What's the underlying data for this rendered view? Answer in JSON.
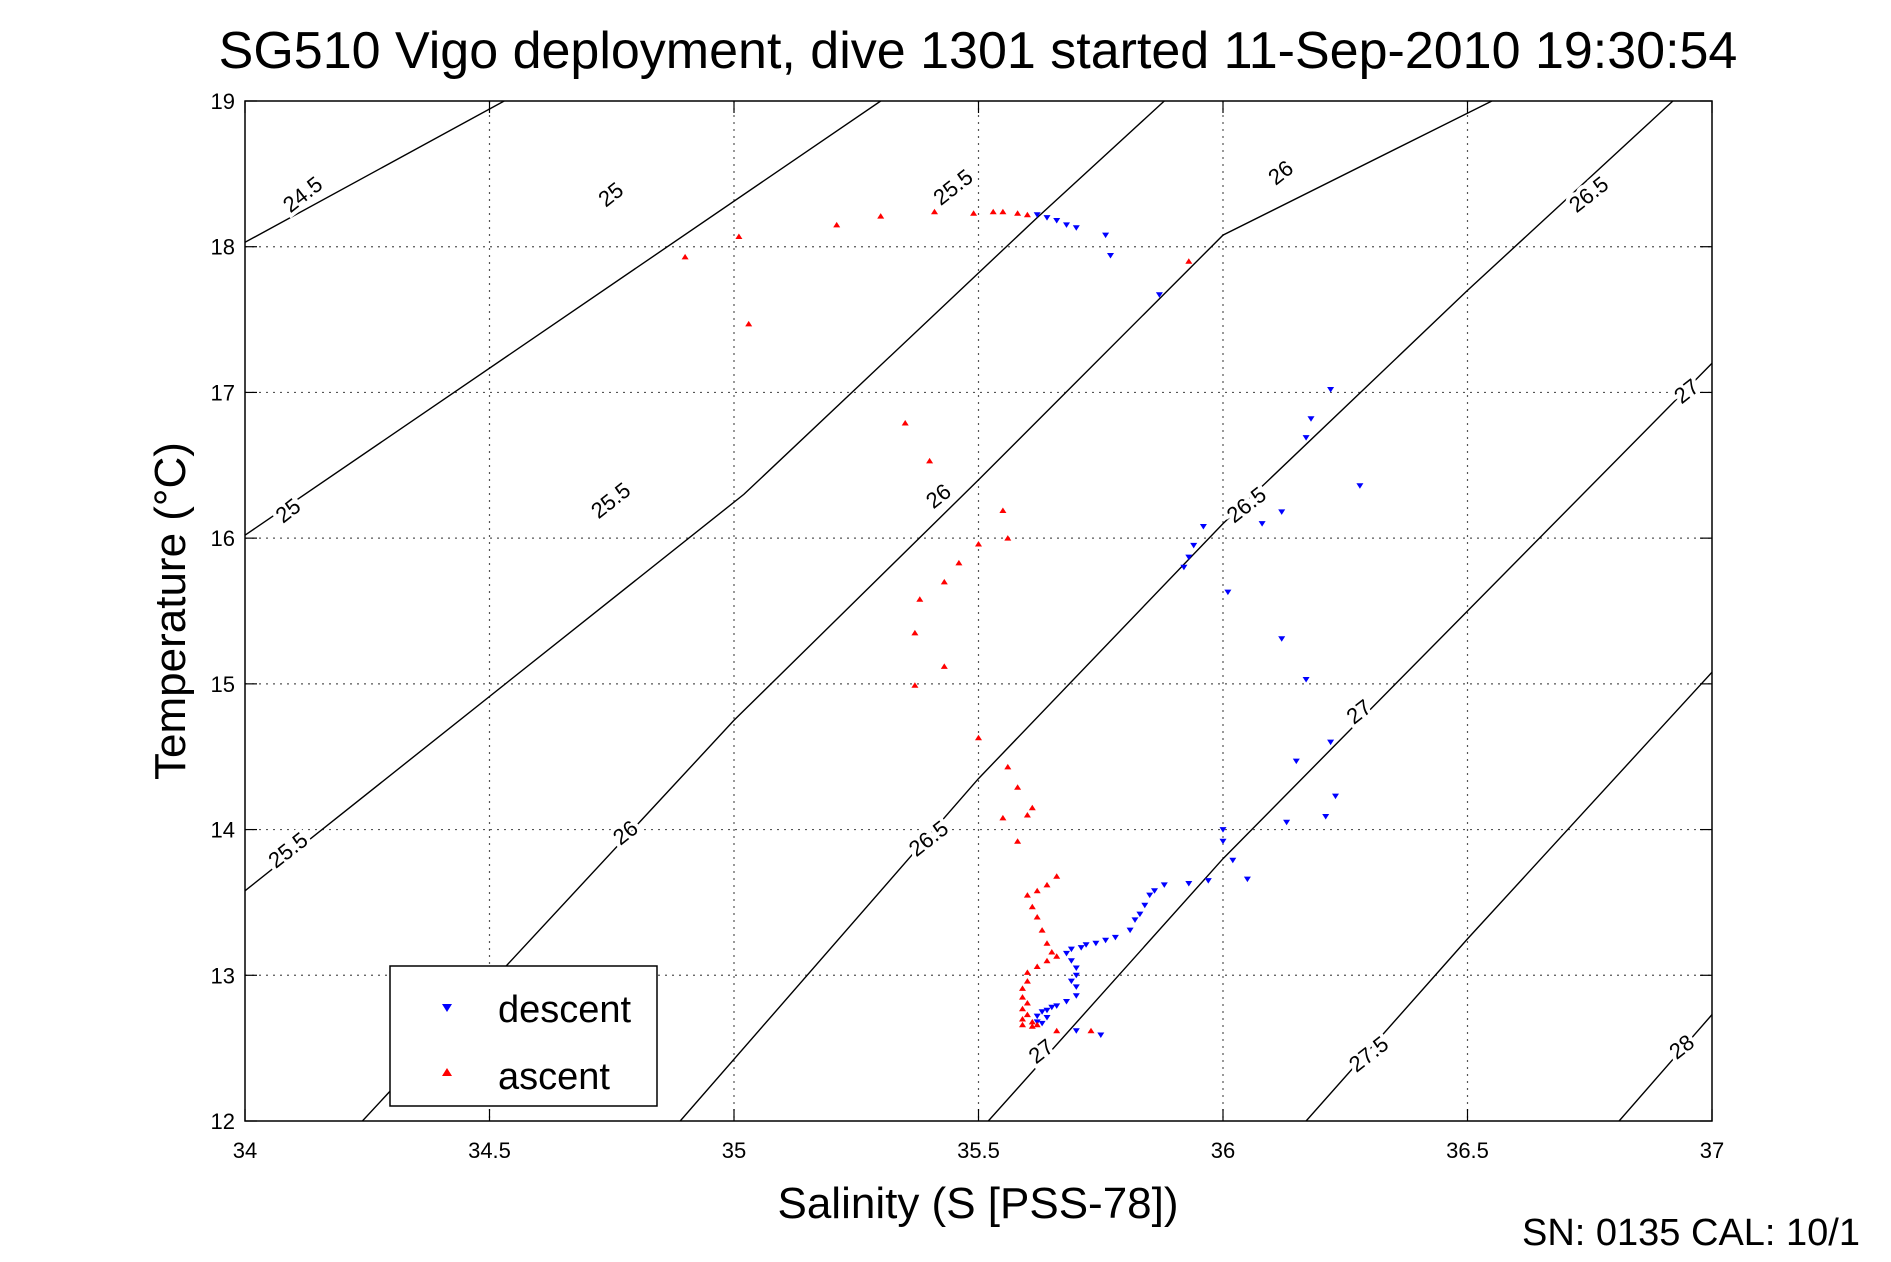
{
  "chart_data": {
    "type": "scatter",
    "title": "SG510 Vigo deployment, dive 1301 started 11-Sep-2010 19:30:54",
    "xlabel": "Salinity (S [PSS-78])",
    "ylabel": "Temperature (°C)",
    "xlim": [
      34,
      37
    ],
    "ylim": [
      12,
      19
    ],
    "x_ticks": [
      34,
      34.5,
      35,
      35.5,
      36,
      36.5,
      37
    ],
    "y_ticks": [
      12,
      13,
      14,
      15,
      16,
      17,
      18,
      19
    ],
    "x_tick_labels": [
      "34",
      "34.5",
      "35",
      "35.5",
      "36",
      "36.5",
      "37"
    ],
    "y_tick_labels": [
      "12",
      "13",
      "14",
      "15",
      "16",
      "17",
      "18",
      "19"
    ],
    "grid": true,
    "legend_position": "bottom-left",
    "density_contours": [
      {
        "label": "24.5",
        "points": [
          [
            34.0,
            18.03
          ],
          [
            34.53,
            19.0
          ]
        ],
        "label_pos": [
          34.12,
          18.35
        ]
      },
      {
        "label": "25",
        "points": [
          [
            34.0,
            16.02
          ],
          [
            35.3,
            19.0
          ]
        ],
        "label_pos": [
          34.09,
          16.18
        ]
      },
      {
        "label": "25",
        "points": [
          [
            34.0,
            16.02
          ],
          [
            35.3,
            19.0
          ]
        ],
        "label_pos": [
          34.75,
          18.35
        ]
      },
      {
        "label": "25.5",
        "points": [
          [
            34.0,
            13.58
          ],
          [
            35.02,
            16.3
          ],
          [
            35.62,
            18.2
          ],
          [
            35.88,
            19.0
          ]
        ],
        "label_pos": [
          34.09,
          13.85
        ]
      },
      {
        "label": "25.5",
        "points": [
          [
            34.0,
            13.58
          ],
          [
            35.02,
            16.3
          ],
          [
            35.62,
            18.2
          ],
          [
            35.88,
            19.0
          ]
        ],
        "label_pos": [
          34.75,
          16.25
        ]
      },
      {
        "label": "25.5",
        "points": [
          [
            34.0,
            13.58
          ],
          [
            35.02,
            16.3
          ],
          [
            35.62,
            18.2
          ],
          [
            35.88,
            19.0
          ]
        ],
        "label_pos": [
          35.45,
          18.4
        ]
      },
      {
        "label": "26",
        "points": [
          [
            34.24,
            12.0
          ],
          [
            35.0,
            14.75
          ],
          [
            35.5,
            16.4
          ],
          [
            36.0,
            18.08
          ],
          [
            36.55,
            19.0
          ]
        ],
        "label_pos": [
          34.78,
          13.97
        ]
      },
      {
        "label": "26",
        "points": [
          [
            34.24,
            12.0
          ],
          [
            35.0,
            14.75
          ],
          [
            35.5,
            16.4
          ],
          [
            36.0,
            18.08
          ],
          [
            36.55,
            19.0
          ]
        ],
        "label_pos": [
          35.42,
          16.28
        ]
      },
      {
        "label": "26",
        "points": [
          [
            34.24,
            12.0
          ],
          [
            35.0,
            14.75
          ],
          [
            35.5,
            16.4
          ],
          [
            36.0,
            18.08
          ],
          [
            36.55,
            19.0
          ]
        ],
        "label_pos": [
          36.12,
          18.5
        ]
      },
      {
        "label": "26.5",
        "points": [
          [
            34.89,
            12.0
          ],
          [
            35.5,
            14.35
          ],
          [
            36.0,
            16.1
          ],
          [
            36.5,
            17.7
          ],
          [
            36.92,
            19.0
          ]
        ],
        "label_pos": [
          35.4,
          13.93
        ]
      },
      {
        "label": "26.5",
        "points": [
          [
            34.89,
            12.0
          ],
          [
            35.5,
            14.35
          ],
          [
            36.0,
            16.1
          ],
          [
            36.5,
            17.7
          ],
          [
            36.92,
            19.0
          ]
        ],
        "label_pos": [
          36.05,
          16.22
        ]
      },
      {
        "label": "26.5",
        "points": [
          [
            34.89,
            12.0
          ],
          [
            35.5,
            14.35
          ],
          [
            36.0,
            16.1
          ],
          [
            36.5,
            17.7
          ],
          [
            36.92,
            19.0
          ]
        ],
        "label_pos": [
          36.75,
          18.35
        ]
      },
      {
        "label": "27",
        "points": [
          [
            35.52,
            12.0
          ],
          [
            36.0,
            13.8
          ],
          [
            36.5,
            15.5
          ],
          [
            37.0,
            17.2
          ]
        ],
        "label_pos": [
          35.63,
          12.47
        ]
      },
      {
        "label": "27",
        "points": [
          [
            35.52,
            12.0
          ],
          [
            36.0,
            13.8
          ],
          [
            36.5,
            15.5
          ],
          [
            37.0,
            17.2
          ]
        ],
        "label_pos": [
          36.28,
          14.8
        ]
      },
      {
        "label": "27",
        "points": [
          [
            35.52,
            12.0
          ],
          [
            36.0,
            13.8
          ],
          [
            36.5,
            15.5
          ],
          [
            37.0,
            17.2
          ]
        ],
        "label_pos": [
          36.95,
          17.0
        ]
      },
      {
        "label": "27.5",
        "points": [
          [
            36.17,
            12.0
          ],
          [
            36.5,
            13.25
          ],
          [
            37.0,
            15.08
          ]
        ],
        "label_pos": [
          36.3,
          12.45
        ]
      },
      {
        "label": "28",
        "points": [
          [
            36.81,
            12.0
          ],
          [
            37.0,
            12.73
          ]
        ],
        "label_pos": [
          36.94,
          12.5
        ]
      }
    ],
    "series": [
      {
        "name": "descent",
        "color": "#0000ff",
        "marker": "triangle-down",
        "points": [
          [
            35.62,
            18.22
          ],
          [
            35.64,
            18.2
          ],
          [
            35.66,
            18.18
          ],
          [
            35.68,
            18.15
          ],
          [
            35.7,
            18.13
          ],
          [
            35.76,
            18.08
          ],
          [
            35.77,
            17.94
          ],
          [
            35.87,
            17.67
          ],
          [
            36.22,
            17.02
          ],
          [
            36.18,
            16.82
          ],
          [
            36.17,
            16.69
          ],
          [
            36.28,
            16.36
          ],
          [
            36.12,
            16.18
          ],
          [
            35.96,
            16.08
          ],
          [
            36.08,
            16.1
          ],
          [
            35.94,
            15.95
          ],
          [
            35.93,
            15.87
          ],
          [
            35.92,
            15.8
          ],
          [
            36.01,
            15.63
          ],
          [
            36.12,
            15.31
          ],
          [
            36.17,
            15.03
          ],
          [
            36.22,
            14.6
          ],
          [
            36.15,
            14.47
          ],
          [
            36.23,
            14.23
          ],
          [
            36.13,
            14.05
          ],
          [
            36.21,
            14.09
          ],
          [
            36.0,
            14.0
          ],
          [
            36.0,
            13.92
          ],
          [
            36.02,
            13.79
          ],
          [
            36.05,
            13.66
          ],
          [
            35.97,
            13.65
          ],
          [
            35.93,
            13.63
          ],
          [
            35.88,
            13.62
          ],
          [
            35.86,
            13.58
          ],
          [
            35.85,
            13.55
          ],
          [
            35.84,
            13.48
          ],
          [
            35.83,
            13.42
          ],
          [
            35.82,
            13.38
          ],
          [
            35.81,
            13.31
          ],
          [
            35.78,
            13.26
          ],
          [
            35.76,
            13.24
          ],
          [
            35.74,
            13.22
          ],
          [
            35.72,
            13.21
          ],
          [
            35.71,
            13.19
          ],
          [
            35.69,
            13.18
          ],
          [
            35.68,
            13.15
          ],
          [
            35.69,
            13.1
          ],
          [
            35.7,
            13.05
          ],
          [
            35.7,
            13.0
          ],
          [
            35.69,
            12.96
          ],
          [
            35.7,
            12.92
          ],
          [
            35.7,
            12.86
          ],
          [
            35.68,
            12.82
          ],
          [
            35.66,
            12.79
          ],
          [
            35.65,
            12.78
          ],
          [
            35.64,
            12.76
          ],
          [
            35.63,
            12.75
          ],
          [
            35.62,
            12.72
          ],
          [
            35.64,
            12.71
          ],
          [
            35.62,
            12.68
          ],
          [
            35.63,
            12.67
          ],
          [
            35.7,
            12.62
          ],
          [
            35.75,
            12.59
          ]
        ]
      },
      {
        "name": "ascent",
        "color": "#ff0000",
        "marker": "triangle-up",
        "points": [
          [
            34.9,
            17.93
          ],
          [
            35.01,
            18.07
          ],
          [
            35.03,
            17.47
          ],
          [
            35.21,
            18.15
          ],
          [
            35.3,
            18.21
          ],
          [
            35.41,
            18.24
          ],
          [
            35.49,
            18.23
          ],
          [
            35.53,
            18.24
          ],
          [
            35.55,
            18.24
          ],
          [
            35.58,
            18.23
          ],
          [
            35.6,
            18.22
          ],
          [
            35.93,
            17.9
          ],
          [
            35.35,
            16.79
          ],
          [
            35.4,
            16.53
          ],
          [
            35.55,
            16.19
          ],
          [
            35.56,
            16.0
          ],
          [
            35.5,
            15.96
          ],
          [
            35.46,
            15.83
          ],
          [
            35.43,
            15.7
          ],
          [
            35.38,
            15.58
          ],
          [
            35.37,
            15.35
          ],
          [
            35.43,
            15.12
          ],
          [
            35.37,
            14.99
          ],
          [
            35.5,
            14.63
          ],
          [
            35.56,
            14.43
          ],
          [
            35.58,
            14.29
          ],
          [
            35.61,
            14.15
          ],
          [
            35.55,
            14.08
          ],
          [
            35.6,
            14.1
          ],
          [
            35.58,
            13.92
          ],
          [
            35.66,
            13.68
          ],
          [
            35.64,
            13.62
          ],
          [
            35.62,
            13.58
          ],
          [
            35.6,
            13.55
          ],
          [
            35.61,
            13.47
          ],
          [
            35.62,
            13.4
          ],
          [
            35.63,
            13.31
          ],
          [
            35.64,
            13.22
          ],
          [
            35.65,
            13.16
          ],
          [
            35.66,
            13.13
          ],
          [
            35.64,
            13.1
          ],
          [
            35.62,
            13.06
          ],
          [
            35.6,
            13.02
          ],
          [
            35.6,
            12.96
          ],
          [
            35.59,
            12.91
          ],
          [
            35.59,
            12.85
          ],
          [
            35.6,
            12.81
          ],
          [
            35.59,
            12.77
          ],
          [
            35.6,
            12.73
          ],
          [
            35.59,
            12.7
          ],
          [
            35.61,
            12.68
          ],
          [
            35.59,
            12.66
          ],
          [
            35.61,
            12.65
          ],
          [
            35.62,
            12.66
          ],
          [
            35.66,
            12.62
          ],
          [
            35.73,
            12.62
          ]
        ]
      }
    ]
  },
  "footer": {
    "note": "SN: 0135  CAL: 10/1"
  }
}
